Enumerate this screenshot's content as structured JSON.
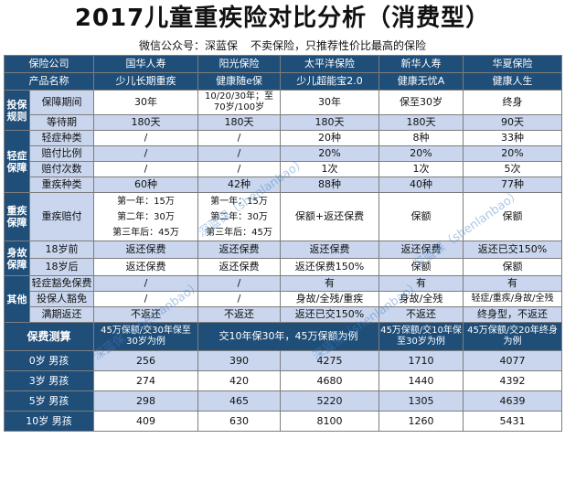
{
  "title": "2017儿童重疾险对比分析（消费型）",
  "subtitle": {
    "account": "微信公众号：深蓝保",
    "slogan": "不卖保险，只推荐性价比最高的保险"
  },
  "header_row1": [
    "保险公司",
    "国华人寿",
    "阳光保险",
    "太平洋保险",
    "新华人寿",
    "华夏保险"
  ],
  "header_row2": [
    "产品名称",
    "少儿长期重疾",
    "健康随e保",
    "少儿超能宝2.0",
    "健康无忧A",
    "健康人生"
  ],
  "sections": {
    "investment": "投保规则",
    "mild": "轻症保障",
    "critical": "重疾保障",
    "death": "身故保障",
    "other": "其他",
    "quote": "保费测算"
  },
  "rows": {
    "period": {
      "label": "保障期间",
      "values": [
        "30年",
        "10/20/30年；至70岁/100岁",
        "30年",
        "保至30岁",
        "终身"
      ]
    },
    "waiting": {
      "label": "等待期",
      "values": [
        "180天",
        "180天",
        "180天",
        "180天",
        "90天"
      ]
    },
    "mild_kinds": {
      "label": "轻症种类",
      "values": [
        "/",
        "/",
        "20种",
        "8种",
        "33种"
      ]
    },
    "mild_ratio": {
      "label": "赔付比例",
      "values": [
        "/",
        "/",
        "20%",
        "20%",
        "20%"
      ]
    },
    "mild_times": {
      "label": "赔付次数",
      "values": [
        "/",
        "/",
        "1次",
        "1次",
        "5次"
      ]
    },
    "crit_kinds": {
      "label": "重疾种类",
      "values": [
        "60种",
        "42种",
        "88种",
        "40种",
        "77种"
      ]
    },
    "crit_pay": {
      "label": "重疾赔付",
      "col1": [
        "第一年：15万",
        "第二年：30万",
        "第三年后：45万"
      ],
      "col2": [
        "第一年：15万",
        "第二年：30万",
        "第三年后：45万"
      ],
      "values": [
        "保额+返还保费",
        "保额",
        "保额"
      ]
    },
    "death_before": {
      "label": "18岁前",
      "values": [
        "返还保费",
        "返还保费",
        "返还保费",
        "返还保费",
        "返还已交150%"
      ]
    },
    "death_after": {
      "label": "18岁后",
      "values": [
        "返还保费",
        "返还保费",
        "返还保费150%",
        "保额",
        "保额"
      ]
    },
    "waiver_mild": {
      "label": "轻症豁免保费",
      "values": [
        "/",
        "/",
        "有",
        "有",
        "有"
      ]
    },
    "waiver_holder": {
      "label": "投保人豁免",
      "values": [
        "/",
        "/",
        "身故/全残/重疾",
        "身故/全残",
        "轻症/重疾/身故/全残"
      ]
    },
    "maturity": {
      "label": "满期返还",
      "values": [
        "不返还",
        "不返还",
        "返还已交150%",
        "不返还",
        "终身型，不返还"
      ]
    }
  },
  "quote_header": {
    "c1": "45万保额/交30年保至30岁为例",
    "c2": "交10年保30年，45万保额为例",
    "c3": "45万保额/交10年保至30岁为例",
    "c4": "45万保额/交20年终身为例"
  },
  "quotes": [
    {
      "label": "0岁 男孩",
      "values": [
        "256",
        "390",
        "4275",
        "1710",
        "4077"
      ]
    },
    {
      "label": "3岁 男孩",
      "values": [
        "274",
        "420",
        "4680",
        "1440",
        "4392"
      ]
    },
    {
      "label": "5岁 男孩",
      "values": [
        "298",
        "465",
        "5220",
        "1305",
        "4639"
      ]
    },
    {
      "label": "10岁 男孩",
      "values": [
        "409",
        "630",
        "8100",
        "1260",
        "5431"
      ]
    }
  ],
  "watermark": "深蓝保（shenlanbao）"
}
